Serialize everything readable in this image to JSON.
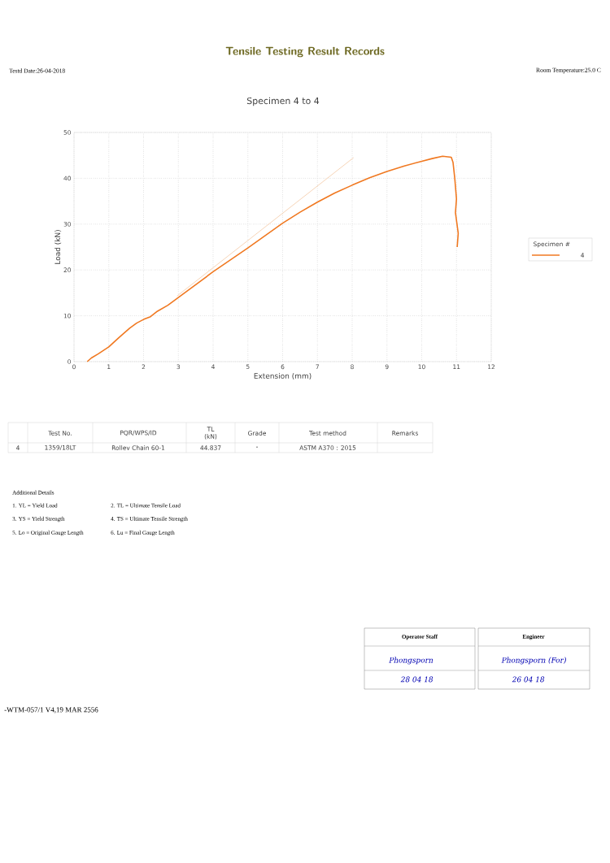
{
  "chart_data": {
    "type": "line",
    "title": "Specimen 4 to 4",
    "xlabel": "Extension (mm)",
    "ylabel": "Load (kN)",
    "legend_title": "Specimen #",
    "xlim": [
      0,
      12
    ],
    "ylim": [
      0,
      50
    ],
    "xticks": [
      0,
      1,
      2,
      3,
      4,
      5,
      6,
      7,
      8,
      9,
      10,
      11,
      12
    ],
    "yticks": [
      0,
      10,
      20,
      30,
      40,
      50
    ],
    "grid": true,
    "legend": "right",
    "series": [
      {
        "name": "4",
        "color": "#f07820",
        "x": [
          0.38,
          0.5,
          0.7,
          1.0,
          1.3,
          1.6,
          1.8,
          2.0,
          2.2,
          2.4,
          2.7,
          3.0,
          3.5,
          4.0,
          4.5,
          5.0,
          5.5,
          6.0,
          6.5,
          7.0,
          7.5,
          8.0,
          8.5,
          9.0,
          9.5,
          10.0,
          10.3,
          10.6,
          10.85,
          10.9,
          10.95,
          11.0,
          10.97,
          11.05,
          11.02
        ],
        "values": [
          0,
          0.8,
          1.7,
          3.2,
          5.3,
          7.3,
          8.4,
          9.2,
          9.8,
          11,
          12.3,
          14,
          16.8,
          19.6,
          22.2,
          24.8,
          27.5,
          30.2,
          32.6,
          34.8,
          36.8,
          38.5,
          40.1,
          41.5,
          42.7,
          43.7,
          44.3,
          44.8,
          44.6,
          43.5,
          40,
          35.5,
          32.5,
          28,
          25
        ]
      },
      {
        "color": "#f5cfae",
        "x": [
          2.96,
          8.04
        ],
        "values": [
          14.3,
          44.5
        ]
      }
    ],
    "annotations": [
      "Tensile Testing Result Records",
      "Testd Date:26-04-2018",
      "Room Temperature:25.0 C",
      "Test No.",
      "PQR/WPS/ID",
      "TL (kN)",
      "Grade",
      "Test method",
      "Remarks",
      "4",
      "1359/18LT",
      "Rollev Chain 60-1",
      "44.837",
      "-",
      "ASTM A370 : 2015",
      "Additional Details",
      "1. YL = Yield Load",
      "2. TL = Ultimate Tensile Load",
      "3. YS = Yield Strength",
      "4. TS = Ultimate Tensile Strength",
      "5. Lo = Original Gauge Length",
      "6. Lu = Final Gauge Length",
      "Operator Staff",
      "Engineer",
      "Phongsporn",
      "28 04 18",
      "Phongsporn (For)",
      "26 04 18",
      "-WTM-057/1 V4,19 MAR 2556"
    ]
  }
}
